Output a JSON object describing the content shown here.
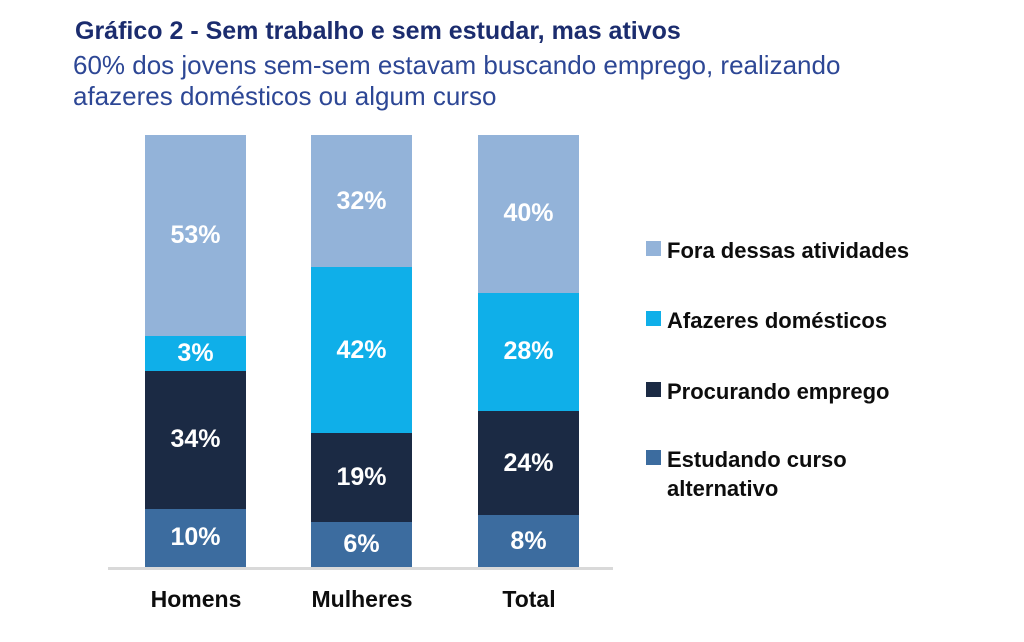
{
  "header": {
    "title": "Gráfico 2 - Sem trabalho e sem estudar, mas ativos",
    "subtitle": "60% dos jovens sem-sem estavam buscando emprego, realizando afazeres domésticos ou algum curso"
  },
  "chart_data": {
    "type": "bar",
    "stacked": true,
    "orientation": "vertical",
    "categories": [
      "Homens",
      "Mulheres",
      "Total"
    ],
    "series": [
      {
        "name": "Fora dessas atividades",
        "color": "#93b3d9",
        "values": [
          53,
          32,
          40
        ]
      },
      {
        "name": "Afazeres domésticos",
        "color": "#0fafe9",
        "values": [
          3,
          42,
          28
        ]
      },
      {
        "name": "Procurando emprego",
        "color": "#1b2a44",
        "values": [
          34,
          19,
          24
        ]
      },
      {
        "name": "Estudando curso alternativo",
        "color": "#3c6c9f",
        "values": [
          10,
          6,
          8
        ]
      }
    ],
    "value_suffix": "%",
    "segment_label_position": "inside-center",
    "segment_order": "first series at top of bar",
    "legend_position": "right",
    "ylim": [
      0,
      100
    ],
    "grid": false,
    "baseline_axis_color": "#d9d9d9"
  },
  "colors": {
    "title_text": "#1b2c6e",
    "subtitle_text": "#2d4795",
    "segment_label_text": "#ffffff",
    "category_label_text": "#0d0d0d",
    "legend_text": "#0d0d0d",
    "axis_line": "#d9d9d9",
    "background": "#ffffff"
  }
}
